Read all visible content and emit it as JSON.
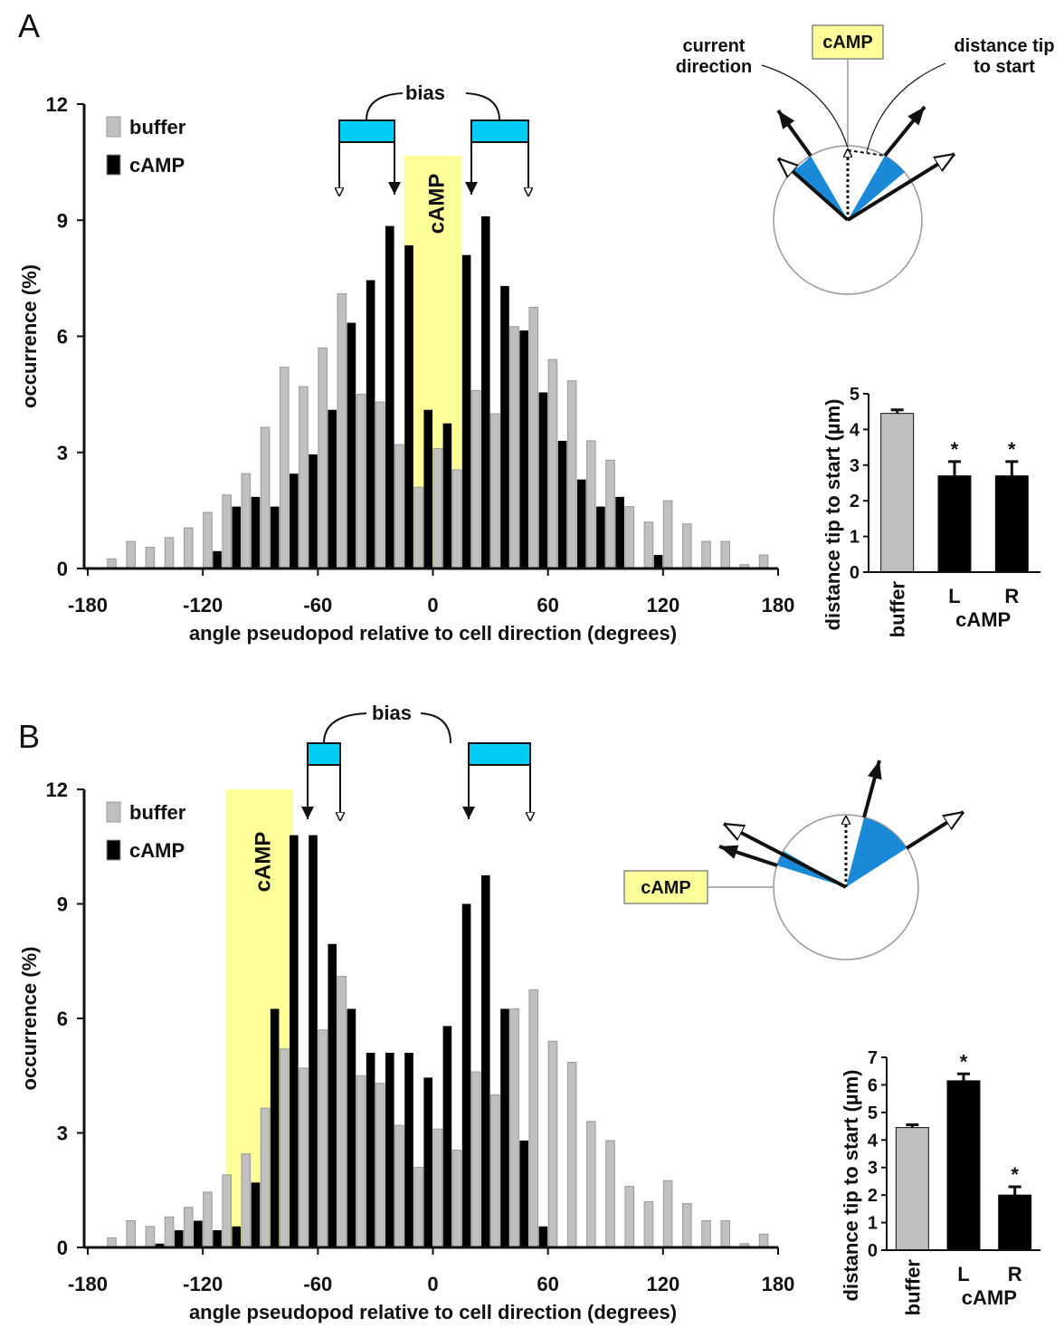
{
  "panel_labels": [
    "A",
    "B"
  ],
  "chart_data": [
    {
      "type": "histogram",
      "x_label": "angle pseudopod relative to cell direction (degrees)",
      "y_label": "occurrence (%)",
      "bins": [
        -170,
        -160,
        -150,
        -140,
        -130,
        -120,
        -110,
        -100,
        -90,
        -80,
        -70,
        -60,
        -50,
        -40,
        -30,
        -20,
        -10,
        0,
        10,
        20,
        30,
        40,
        50,
        60,
        70,
        80,
        90,
        100,
        110,
        120,
        130,
        140,
        150,
        160,
        170,
        180
      ],
      "series": [
        {
          "name": "buffer",
          "color": "#c0c0c0",
          "values": [
            0.25,
            0.7,
            0.55,
            0.8,
            1.05,
            1.45,
            1.9,
            2.45,
            3.65,
            5.2,
            4.7,
            5.7,
            7.1,
            4.5,
            4.3,
            3.2,
            2.1,
            3.1,
            2.55,
            4.6,
            4.0,
            6.25,
            6.75,
            5.4,
            4.85,
            3.3,
            2.8,
            1.6,
            1.2,
            1.75,
            1.15,
            0.7,
            0.7,
            0.1,
            0.35
          ]
        },
        {
          "name": "cAMP",
          "color": "#000000",
          "values": [
            0,
            0,
            0,
            0,
            0,
            0.45,
            1.6,
            1.85,
            1.6,
            2.45,
            2.95,
            4.1,
            6.35,
            7.45,
            8.85,
            8.35,
            4.1,
            3.75,
            8.1,
            9.1,
            7.3,
            6.15,
            4.55,
            3.3,
            2.3,
            1.6,
            1.85,
            0,
            0.35,
            0,
            0,
            0,
            0,
            0,
            0
          ]
        }
      ],
      "xlim": [
        -180,
        180
      ],
      "xticks": [
        -180,
        -120,
        -60,
        0,
        60,
        120,
        180
      ],
      "ylim": [
        0,
        12
      ],
      "yticks": [
        0,
        3,
        6,
        9,
        12
      ],
      "highlight": {
        "label": "cAMP",
        "range": [
          -15,
          15
        ],
        "color": "#ffff99"
      },
      "bias_label": "bias",
      "diagram_texts": [
        "current direction",
        "cAMP",
        "distance tip to start"
      ]
    },
    {
      "type": "bar",
      "y_label": "distance tip to start (µm)",
      "categories": [
        "buffer",
        "L",
        "R"
      ],
      "group_label": "cAMP",
      "values": [
        4.45,
        2.7,
        2.7
      ],
      "errors": [
        0.1,
        0.4,
        0.4
      ],
      "colors": [
        "#c0c0c0",
        "#000000",
        "#000000"
      ],
      "significance": [
        null,
        "*",
        "*"
      ],
      "ylim": [
        0,
        5
      ],
      "yticks": [
        0,
        1,
        2,
        3,
        4,
        5
      ]
    },
    {
      "type": "histogram",
      "x_label": "angle pseudopod relative to cell direction (degrees)",
      "y_label": "occurrence (%)",
      "bins": [
        -170,
        -160,
        -150,
        -140,
        -130,
        -120,
        -110,
        -100,
        -90,
        -80,
        -70,
        -60,
        -50,
        -40,
        -30,
        -20,
        -10,
        0,
        10,
        20,
        30,
        40,
        50,
        60,
        70,
        80,
        90,
        100,
        110,
        120,
        130,
        140,
        150,
        160,
        170,
        180
      ],
      "series": [
        {
          "name": "buffer",
          "color": "#c0c0c0",
          "values": [
            0.25,
            0.7,
            0.55,
            0.8,
            1.05,
            1.45,
            1.9,
            2.45,
            3.65,
            5.2,
            4.7,
            5.7,
            7.1,
            4.5,
            4.3,
            3.2,
            2.1,
            3.1,
            2.55,
            4.6,
            4.0,
            6.25,
            6.75,
            5.4,
            4.85,
            3.3,
            2.8,
            1.6,
            1.2,
            1.75,
            1.15,
            0.7,
            0.7,
            0.1,
            0.35
          ]
        },
        {
          "name": "cAMP",
          "color": "#000000",
          "values": [
            0,
            0,
            0.1,
            0.45,
            0.7,
            0.45,
            0.55,
            1.7,
            6.25,
            10.8,
            10.8,
            7.95,
            6.25,
            5.1,
            5.1,
            5.1,
            4.45,
            5.8,
            9.0,
            9.75,
            6.25,
            2.8,
            0.55,
            0,
            0,
            0,
            0,
            0,
            0,
            0,
            0,
            0,
            0,
            0,
            0
          ]
        }
      ],
      "xlim": [
        -180,
        180
      ],
      "xticks": [
        -180,
        -120,
        -60,
        0,
        60,
        120,
        180
      ],
      "ylim": [
        0,
        12
      ],
      "yticks": [
        0,
        3,
        6,
        9,
        12
      ],
      "highlight": {
        "label": "cAMP",
        "range": [
          -108,
          -73
        ],
        "color": "#ffff99"
      },
      "bias_label": "bias",
      "diagram_texts": [
        "cAMP"
      ]
    },
    {
      "type": "bar",
      "y_label": "distance tip to start (µm)",
      "categories": [
        "buffer",
        "L",
        "R"
      ],
      "group_label": "cAMP",
      "values": [
        4.45,
        6.15,
        2.0
      ],
      "errors": [
        0.1,
        0.25,
        0.3
      ],
      "colors": [
        "#c0c0c0",
        "#000000",
        "#000000"
      ],
      "significance": [
        null,
        "*",
        "*"
      ],
      "ylim": [
        0,
        7
      ],
      "yticks": [
        0,
        1,
        2,
        3,
        4,
        5,
        6,
        7
      ]
    }
  ]
}
